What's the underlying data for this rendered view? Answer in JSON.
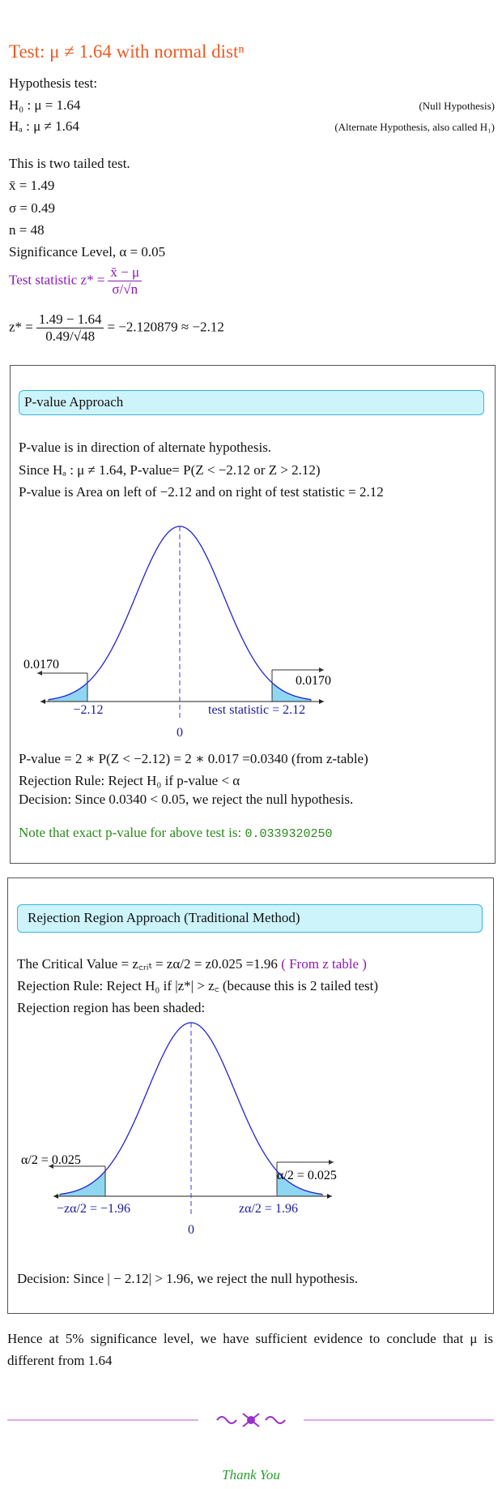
{
  "title": "Test: μ ≠ 1.64 with normal distⁿ",
  "hypothesis": {
    "heading": "Hypothesis test:",
    "h0": "H₀ : μ = 1.64",
    "h0_note": "(Null Hypothesis)",
    "ha": "Hₐ : μ ≠ 1.64",
    "ha_note": "(Alternate Hypothesis, also called H₁)"
  },
  "given": [
    "This is two tailed test.",
    "x̄ = 1.49",
    "σ = 0.49",
    "n = 48",
    "Significance Level, α = 0.05"
  ],
  "test_statistic": {
    "label": "Test statistic z* =",
    "numerator": "x̄ − μ",
    "denominator": "σ/√n"
  },
  "z_calc": {
    "label": "z* =",
    "numerator": "1.49 − 1.64",
    "denominator": "0.49/√48",
    "result": "= −2.120879 ≈ −2.12"
  },
  "p_value_section": {
    "heading": "P-value Approach",
    "lines": [
      "P-value is in direction of alternate hypothesis.",
      "Since Hₐ : μ ≠ 1.64, P-value= P(Z < −2.12 or Z > 2.12)",
      "P-value is Area on left of −2.12 and on right of test statistic = 2.12"
    ],
    "figure": {
      "left_area": "0.0170",
      "right_area": "0.0170",
      "left_label": "−2.12",
      "right_label": "test statistic = 2.12",
      "center_label": "0"
    },
    "result_lines": [
      "P-value = 2 ∗ P(Z < −2.12) = 2 ∗ 0.017 =0.0340 (from z-table)",
      "Rejection Rule: Reject H₀ if p-value < α",
      "Decision: Since 0.0340 < 0.05, we reject the null hypothesis."
    ],
    "note": "Note that exact p-value for above test is:",
    "note_value": "0.0339320250"
  },
  "rejection_section": {
    "heading": "Rejection Region Approach (Traditional Method)",
    "critical_value": "The Critical Value = z꜀ᵣᵢₜ = zα/2 = z0.025 =1.96",
    "critical_source": "( From z table )",
    "lines": [
      "Rejection Rule: Reject H₀ if |z*| > z꜀ (because this is 2 tailed test)",
      "Rejection region has been shaded:"
    ],
    "figure": {
      "left_area": "α/2 = 0.025",
      "right_area": "α/2 = 0.025",
      "left_label": "−zα/2 = −1.96",
      "right_label": "zα/2 = 1.96",
      "center_label": "0"
    },
    "decision": "Decision: Since | − 2.12| > 1.96, we reject the null hypothesis."
  },
  "conclusion": "Hence at 5% significance level, we have sufficient evidence to conclude that μ is different from 1.64",
  "footer": "Thank You"
}
